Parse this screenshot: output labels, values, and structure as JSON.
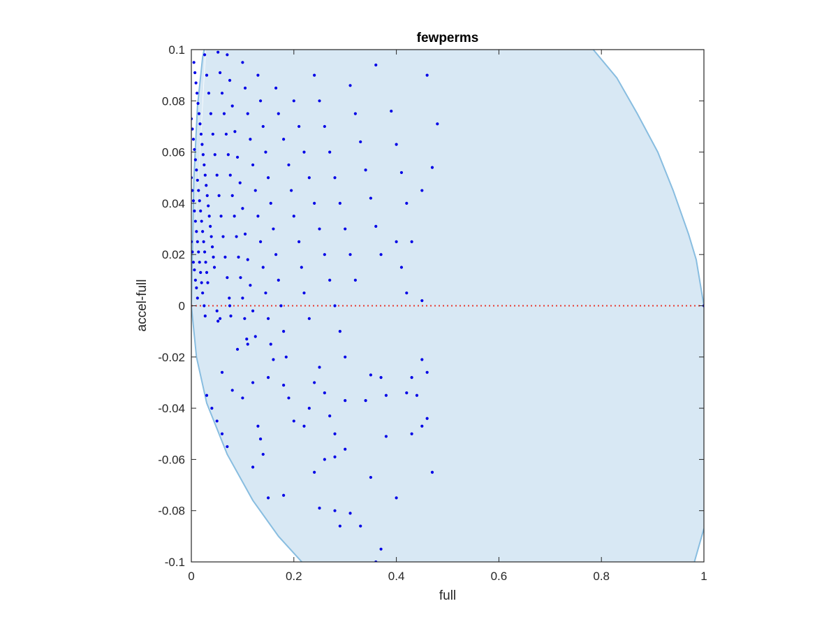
{
  "chart_data": {
    "type": "scatter",
    "title": "fewperms",
    "xlabel": "full",
    "ylabel": "accel-full",
    "xlim": [
      0,
      1
    ],
    "ylim": [
      -0.1,
      0.1
    ],
    "xticks": [
      0,
      0.2,
      0.4,
      0.6,
      0.8,
      1
    ],
    "xtick_labels": [
      "0",
      "0.2",
      "0.4",
      "0.6",
      "0.8",
      "1"
    ],
    "yticks": [
      -0.1,
      -0.08,
      -0.06,
      -0.04,
      -0.02,
      0,
      0.02,
      0.04,
      0.06,
      0.08,
      0.1
    ],
    "ytick_labels": [
      "-0.1",
      "-0.08",
      "-0.06",
      "-0.04",
      "-0.02",
      "0",
      "0.02",
      "0.04",
      "0.06",
      "0.08",
      "0.1"
    ],
    "grid": false,
    "colors": {
      "points": "#0000e6",
      "zero_line": "#e8392f",
      "region_fill": "#d8e8f4",
      "region_edge": "#88bde0",
      "axes": "#262626"
    },
    "reference_line": {
      "y": 0,
      "style": "dotted"
    },
    "feasible_region": {
      "upper_boundary": [
        [
          0,
          0
        ],
        [
          0.005,
          0.05
        ],
        [
          0.012,
          0.078
        ],
        [
          0.022,
          0.097
        ],
        [
          0.03,
          0.105
        ]
      ],
      "lower_boundary": [
        [
          0,
          0
        ],
        [
          0.01,
          -0.02
        ],
        [
          0.03,
          -0.038
        ],
        [
          0.07,
          -0.058
        ],
        [
          0.12,
          -0.076
        ],
        [
          0.17,
          -0.09
        ],
        [
          0.22,
          -0.101
        ]
      ],
      "right_upper_boundary": [
        [
          0.78,
          0.101
        ],
        [
          0.83,
          0.089
        ],
        [
          0.87,
          0.075
        ],
        [
          0.91,
          0.06
        ],
        [
          0.94,
          0.045
        ],
        [
          0.97,
          0.028
        ],
        [
          0.985,
          0.018
        ],
        [
          1,
          0
        ]
      ],
      "right_lower_boundary": [
        [
          0.98,
          -0.101
        ],
        [
          1,
          -0.087
        ]
      ]
    },
    "series": [
      {
        "points": [
          [
            0,
            0.025
          ],
          [
            0.002,
            0.021
          ],
          [
            0.004,
            0.017
          ],
          [
            0.006,
            0.014
          ],
          [
            0.008,
            0.01
          ],
          [
            0.01,
            0.007
          ],
          [
            0.012,
            0.003
          ],
          [
            0,
            0.05
          ],
          [
            0.002,
            0.045
          ],
          [
            0.004,
            0.041
          ],
          [
            0.006,
            0.037
          ],
          [
            0.008,
            0.033
          ],
          [
            0.01,
            0.029
          ],
          [
            0.012,
            0.025
          ],
          [
            0.014,
            0.021
          ],
          [
            0.016,
            0.017
          ],
          [
            0.018,
            0.013
          ],
          [
            0.02,
            0.009
          ],
          [
            0.022,
            0.005
          ],
          [
            0,
            0.073
          ],
          [
            0.002,
            0.069
          ],
          [
            0.004,
            0.065
          ],
          [
            0.006,
            0.061
          ],
          [
            0.008,
            0.057
          ],
          [
            0.01,
            0.053
          ],
          [
            0.012,
            0.049
          ],
          [
            0.014,
            0.045
          ],
          [
            0.016,
            0.041
          ],
          [
            0.018,
            0.037
          ],
          [
            0.02,
            0.033
          ],
          [
            0.022,
            0.029
          ],
          [
            0.024,
            0.025
          ],
          [
            0.026,
            0.021
          ],
          [
            0.028,
            0.017
          ],
          [
            0.03,
            0.013
          ],
          [
            0.032,
            0.009
          ],
          [
            0.005,
            0.095
          ],
          [
            0.007,
            0.091
          ],
          [
            0.009,
            0.087
          ],
          [
            0.011,
            0.083
          ],
          [
            0.013,
            0.079
          ],
          [
            0.015,
            0.075
          ],
          [
            0.017,
            0.071
          ],
          [
            0.019,
            0.067
          ],
          [
            0.021,
            0.063
          ],
          [
            0.023,
            0.059
          ],
          [
            0.025,
            0.055
          ],
          [
            0.027,
            0.051
          ],
          [
            0.029,
            0.047
          ],
          [
            0.031,
            0.043
          ],
          [
            0.033,
            0.039
          ],
          [
            0.035,
            0.035
          ],
          [
            0.037,
            0.031
          ],
          [
            0.039,
            0.027
          ],
          [
            0.041,
            0.023
          ],
          [
            0.043,
            0.019
          ],
          [
            0.045,
            0.015
          ],
          [
            0.025,
            0.0
          ],
          [
            0.027,
            -0.004
          ],
          [
            0.05,
            -0.002
          ],
          [
            0.052,
            -0.006
          ],
          [
            0.056,
            -0.005
          ],
          [
            0.075,
            0.0
          ],
          [
            0.077,
            -0.004
          ],
          [
            0.026,
            0.098
          ],
          [
            0.03,
            0.09
          ],
          [
            0.034,
            0.083
          ],
          [
            0.038,
            0.075
          ],
          [
            0.042,
            0.067
          ],
          [
            0.046,
            0.059
          ],
          [
            0.05,
            0.051
          ],
          [
            0.054,
            0.043
          ],
          [
            0.058,
            0.035
          ],
          [
            0.062,
            0.027
          ],
          [
            0.066,
            0.019
          ],
          [
            0.07,
            0.011
          ],
          [
            0.074,
            0.003
          ],
          [
            0.052,
            0.099
          ],
          [
            0.056,
            0.091
          ],
          [
            0.06,
            0.083
          ],
          [
            0.064,
            0.075
          ],
          [
            0.068,
            0.067
          ],
          [
            0.072,
            0.059
          ],
          [
            0.076,
            0.051
          ],
          [
            0.08,
            0.043
          ],
          [
            0.084,
            0.035
          ],
          [
            0.088,
            0.027
          ],
          [
            0.092,
            0.019
          ],
          [
            0.096,
            0.011
          ],
          [
            0.1,
            0.003
          ],
          [
            0.104,
            -0.005
          ],
          [
            0.108,
            -0.013
          ],
          [
            0.07,
            0.098
          ],
          [
            0.075,
            0.088
          ],
          [
            0.08,
            0.078
          ],
          [
            0.085,
            0.068
          ],
          [
            0.09,
            0.058
          ],
          [
            0.095,
            0.048
          ],
          [
            0.1,
            0.038
          ],
          [
            0.105,
            0.028
          ],
          [
            0.11,
            0.018
          ],
          [
            0.115,
            0.008
          ],
          [
            0.12,
            -0.002
          ],
          [
            0.125,
            -0.012
          ],
          [
            0.1,
            0.095
          ],
          [
            0.105,
            0.085
          ],
          [
            0.11,
            0.075
          ],
          [
            0.115,
            0.065
          ],
          [
            0.12,
            0.055
          ],
          [
            0.125,
            0.045
          ],
          [
            0.13,
            0.035
          ],
          [
            0.135,
            0.025
          ],
          [
            0.14,
            0.015
          ],
          [
            0.145,
            0.005
          ],
          [
            0.15,
            -0.005
          ],
          [
            0.155,
            -0.015
          ],
          [
            0.13,
            0.09
          ],
          [
            0.135,
            0.08
          ],
          [
            0.14,
            0.07
          ],
          [
            0.145,
            0.06
          ],
          [
            0.15,
            0.05
          ],
          [
            0.155,
            0.04
          ],
          [
            0.16,
            0.03
          ],
          [
            0.165,
            0.02
          ],
          [
            0.17,
            0.01
          ],
          [
            0.175,
            0.0
          ],
          [
            0.18,
            -0.01
          ],
          [
            0.185,
            -0.02
          ],
          [
            0.165,
            0.085
          ],
          [
            0.17,
            0.075
          ],
          [
            0.18,
            0.065
          ],
          [
            0.19,
            0.055
          ],
          [
            0.195,
            0.045
          ],
          [
            0.2,
            0.035
          ],
          [
            0.21,
            0.025
          ],
          [
            0.215,
            0.015
          ],
          [
            0.22,
            0.005
          ],
          [
            0.23,
            -0.005
          ],
          [
            0.2,
            0.08
          ],
          [
            0.21,
            0.07
          ],
          [
            0.22,
            0.06
          ],
          [
            0.23,
            0.05
          ],
          [
            0.24,
            0.04
          ],
          [
            0.25,
            0.03
          ],
          [
            0.26,
            0.02
          ],
          [
            0.27,
            0.01
          ],
          [
            0.28,
            0.0
          ],
          [
            0.29,
            -0.01
          ],
          [
            0.3,
            -0.02
          ],
          [
            0.24,
            0.09
          ],
          [
            0.25,
            0.08
          ],
          [
            0.26,
            0.07
          ],
          [
            0.27,
            0.06
          ],
          [
            0.28,
            0.05
          ],
          [
            0.29,
            0.04
          ],
          [
            0.3,
            0.03
          ],
          [
            0.31,
            0.02
          ],
          [
            0.32,
            0.01
          ],
          [
            0.31,
            0.086
          ],
          [
            0.32,
            0.075
          ],
          [
            0.33,
            0.064
          ],
          [
            0.34,
            0.053
          ],
          [
            0.35,
            0.042
          ],
          [
            0.36,
            0.031
          ],
          [
            0.37,
            0.02
          ],
          [
            0.36,
            0.094
          ],
          [
            0.39,
            0.076
          ],
          [
            0.4,
            0.063
          ],
          [
            0.41,
            0.052
          ],
          [
            0.42,
            0.04
          ],
          [
            0.43,
            0.025
          ],
          [
            0.45,
            0.002
          ],
          [
            0.46,
            0.09
          ],
          [
            0.48,
            0.071
          ],
          [
            0.47,
            0.054
          ],
          [
            0.45,
            0.045
          ],
          [
            0.4,
            0.025
          ],
          [
            0.41,
            0.015
          ],
          [
            0.42,
            0.005
          ],
          [
            0.03,
            -0.035
          ],
          [
            0.04,
            -0.04
          ],
          [
            0.05,
            -0.045
          ],
          [
            0.06,
            -0.05
          ],
          [
            0.07,
            -0.055
          ],
          [
            0.06,
            -0.026
          ],
          [
            0.08,
            -0.033
          ],
          [
            0.1,
            -0.036
          ],
          [
            0.12,
            -0.03
          ],
          [
            0.09,
            -0.017
          ],
          [
            0.11,
            -0.015
          ],
          [
            0.13,
            -0.047
          ],
          [
            0.135,
            -0.052
          ],
          [
            0.14,
            -0.058
          ],
          [
            0.12,
            -0.063
          ],
          [
            0.15,
            -0.075
          ],
          [
            0.18,
            -0.074
          ],
          [
            0.15,
            -0.028
          ],
          [
            0.16,
            -0.021
          ],
          [
            0.18,
            -0.031
          ],
          [
            0.19,
            -0.036
          ],
          [
            0.2,
            -0.045
          ],
          [
            0.22,
            -0.047
          ],
          [
            0.23,
            -0.04
          ],
          [
            0.24,
            -0.03
          ],
          [
            0.25,
            -0.024
          ],
          [
            0.26,
            -0.034
          ],
          [
            0.27,
            -0.043
          ],
          [
            0.28,
            -0.05
          ],
          [
            0.3,
            -0.037
          ],
          [
            0.26,
            -0.06
          ],
          [
            0.28,
            -0.059
          ],
          [
            0.3,
            -0.056
          ],
          [
            0.24,
            -0.065
          ],
          [
            0.25,
            -0.079
          ],
          [
            0.28,
            -0.08
          ],
          [
            0.29,
            -0.086
          ],
          [
            0.31,
            -0.081
          ],
          [
            0.33,
            -0.086
          ],
          [
            0.35,
            -0.067
          ],
          [
            0.36,
            -0.1
          ],
          [
            0.37,
            -0.095
          ],
          [
            0.34,
            -0.037
          ],
          [
            0.35,
            -0.027
          ],
          [
            0.37,
            -0.028
          ],
          [
            0.38,
            -0.035
          ],
          [
            0.38,
            -0.051
          ],
          [
            0.4,
            -0.075
          ],
          [
            0.42,
            -0.034
          ],
          [
            0.43,
            -0.028
          ],
          [
            0.44,
            -0.035
          ],
          [
            0.45,
            -0.021
          ],
          [
            0.46,
            -0.026
          ],
          [
            0.46,
            -0.044
          ],
          [
            0.47,
            -0.065
          ],
          [
            0.45,
            -0.047
          ],
          [
            0.43,
            -0.05
          ],
          [
            1,
            0
          ]
        ]
      }
    ]
  }
}
